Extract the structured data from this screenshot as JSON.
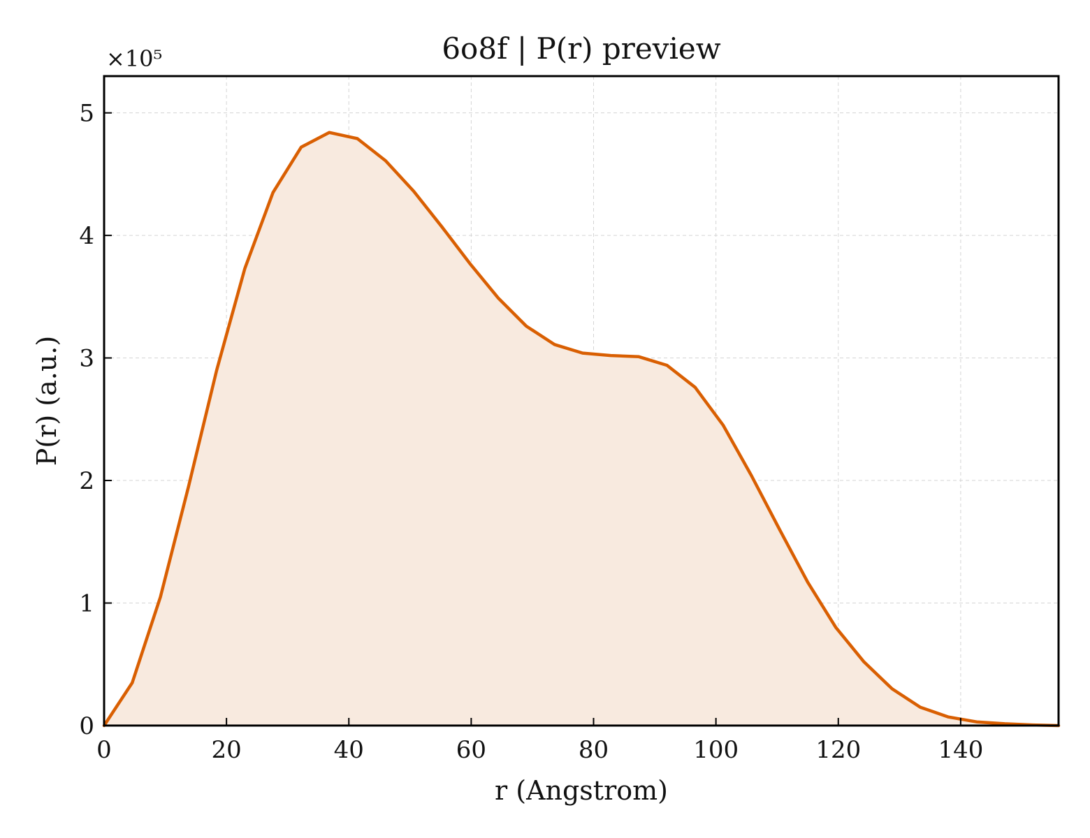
{
  "chart_data": {
    "type": "area",
    "title": "6o8f | P(r) preview",
    "xlabel": "r (Angstrom)",
    "ylabel": "P(r) (a.u.)",
    "y_multiplier_label": "×10⁵",
    "xlim": [
      0,
      156
    ],
    "ylim": [
      0,
      5.3
    ],
    "x_ticks": [
      0,
      20,
      40,
      60,
      80,
      100,
      120,
      140
    ],
    "y_ticks": [
      0,
      1,
      2,
      3,
      4,
      5
    ],
    "grid": true,
    "line_color": "#d95f02",
    "fill_color": "#f8eadf",
    "series": [
      {
        "x": [
          0,
          4.6,
          9.2,
          13.8,
          18.4,
          23.0,
          27.6,
          32.2,
          36.8,
          41.4,
          46.0,
          50.6,
          55.2,
          59.8,
          64.4,
          69.0,
          73.6,
          78.2,
          82.8,
          87.4,
          92.0,
          96.6,
          101.2,
          105.8,
          110.4,
          115.0,
          119.6,
          124.2,
          128.8,
          133.4,
          138.0,
          142.6,
          147.2,
          151.8,
          156.0
        ],
        "y": [
          0,
          0.35,
          1.05,
          1.95,
          2.9,
          3.73,
          4.35,
          4.72,
          4.84,
          4.79,
          4.61,
          4.36,
          4.07,
          3.77,
          3.49,
          3.26,
          3.11,
          3.04,
          3.02,
          3.01,
          2.94,
          2.76,
          2.45,
          2.04,
          1.6,
          1.17,
          0.8,
          0.52,
          0.3,
          0.15,
          0.07,
          0.03,
          0.015,
          0.005,
          0.0
        ]
      }
    ]
  }
}
